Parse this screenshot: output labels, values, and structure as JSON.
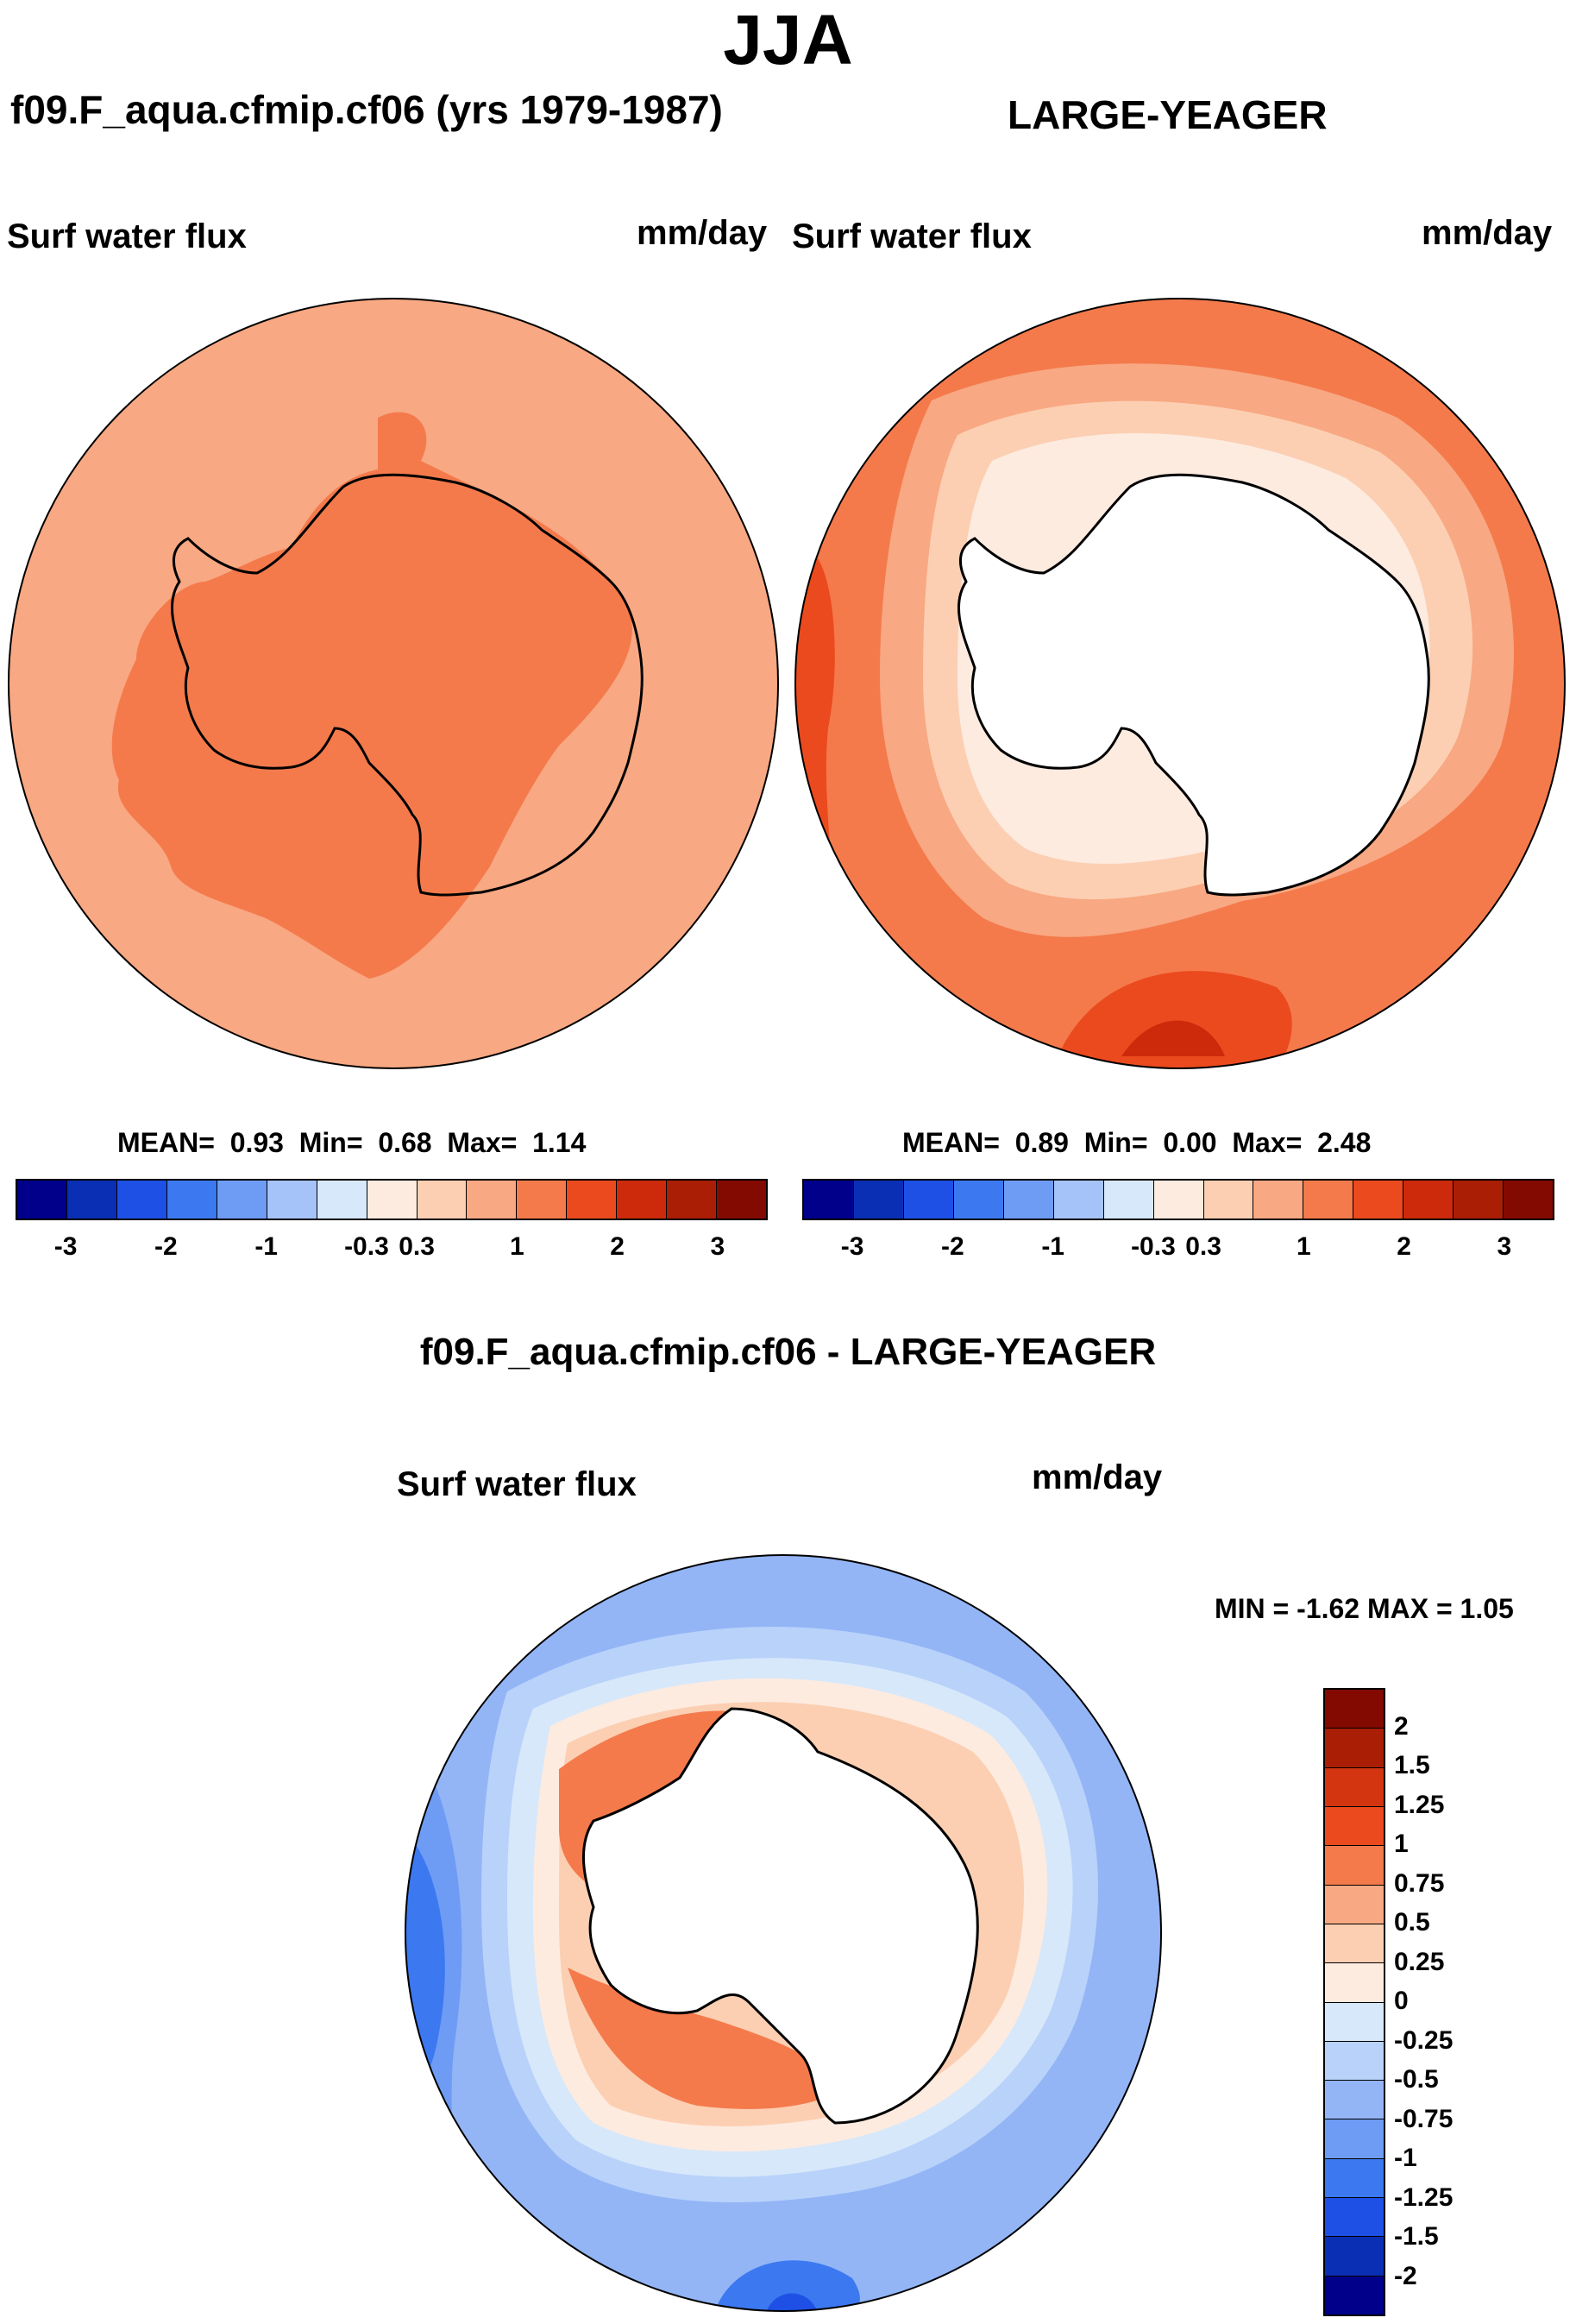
{
  "title": "JJA",
  "panels": {
    "left": {
      "case_title": "f09.F_aqua.cfmip.cf06 (yrs 1979-1987)",
      "variable": "Surf water flux",
      "units": "mm/day",
      "stats": {
        "mean_label": "MEAN=",
        "mean": "0.93",
        "min_label": "Min=",
        "min": "0.68",
        "max_label": "Max=",
        "max": "1.14"
      }
    },
    "right": {
      "case_title": "LARGE-YEAGER",
      "variable": "Surf water flux",
      "units": "mm/day",
      "stats": {
        "mean_label": "MEAN=",
        "mean": "0.89",
        "min_label": "Min=",
        "min": "0.00",
        "max_label": "Max=",
        "max": "2.48"
      }
    },
    "diff": {
      "case_title": "f09.F_aqua.cfmip.cf06 - LARGE-YEAGER",
      "variable": "Surf water flux",
      "units": "mm/day",
      "minmax": "MIN =  -1.62 MAX =   1.05"
    }
  },
  "colorbar_horizontal": {
    "colors": [
      "#00008b",
      "#0a2fb4",
      "#1e50e6",
      "#3c78f0",
      "#6e9cf5",
      "#a5c3f8",
      "#d7e8fa",
      "#fdebe0",
      "#fccfb2",
      "#f8a882",
      "#f47a4c",
      "#eb4a1e",
      "#cd2a0c",
      "#aa1e05",
      "#820a00"
    ],
    "ticks": [
      "-3",
      "-2",
      "-1",
      "-0.3",
      "0.3",
      "1",
      "2",
      "3"
    ]
  },
  "colorbar_vertical": {
    "colors": [
      "#820a00",
      "#aa1e05",
      "#d23510",
      "#eb4a1e",
      "#f47a4c",
      "#f8a882",
      "#fccfb2",
      "#fdebe0",
      "#d7e8fa",
      "#b8d2fa",
      "#93b5f6",
      "#6e9cf5",
      "#3c78f0",
      "#1e50e6",
      "#0a2fb4",
      "#00008b"
    ],
    "ticks": [
      "2",
      "1.5",
      "1.25",
      "1",
      "0.75",
      "0.5",
      "0.25",
      "0",
      "-0.25",
      "-0.5",
      "-0.75",
      "-1",
      "-1.25",
      "-1.5",
      "-2"
    ]
  }
}
